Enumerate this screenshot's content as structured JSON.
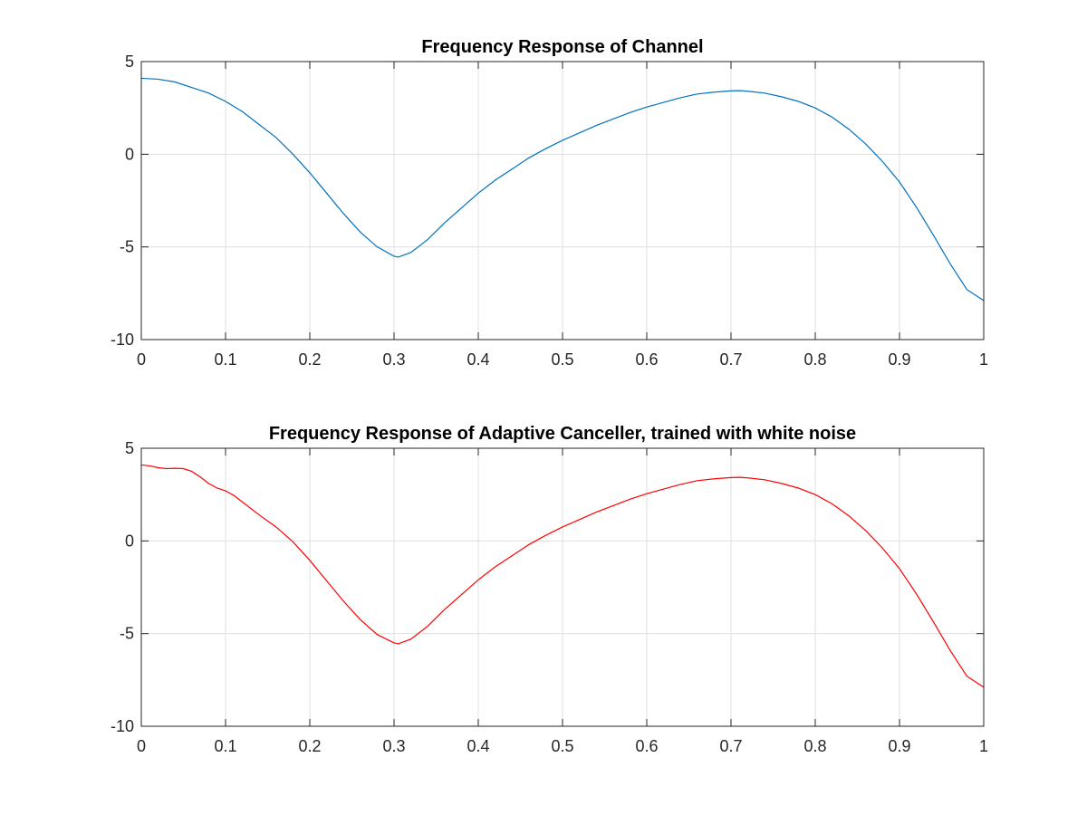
{
  "chart_data": [
    {
      "type": "line",
      "title": "Frequency Response of Channel",
      "xlabel": "",
      "ylabel": "",
      "xlim": [
        0,
        1
      ],
      "ylim": [
        -10,
        5
      ],
      "grid": true,
      "xticks": [
        0,
        0.1,
        0.2,
        0.3,
        0.4,
        0.5,
        0.6,
        0.7,
        0.8,
        0.9,
        1
      ],
      "xtick_labels": [
        "0",
        "0.1",
        "0.2",
        "0.3",
        "0.4",
        "0.5",
        "0.6",
        "0.7",
        "0.8",
        "0.9",
        "1"
      ],
      "yticks": [
        5,
        0,
        -5,
        -10
      ],
      "ytick_labels": [
        "5",
        "0",
        "-5",
        "-10"
      ],
      "series": [
        {
          "color": "#0072bd",
          "x": [
            0,
            0.02,
            0.04,
            0.06,
            0.08,
            0.1,
            0.12,
            0.14,
            0.16,
            0.18,
            0.2,
            0.22,
            0.24,
            0.26,
            0.28,
            0.3,
            0.305,
            0.32,
            0.34,
            0.36,
            0.38,
            0.4,
            0.42,
            0.44,
            0.46,
            0.48,
            0.5,
            0.52,
            0.54,
            0.56,
            0.58,
            0.6,
            0.62,
            0.64,
            0.66,
            0.68,
            0.7,
            0.71,
            0.72,
            0.74,
            0.76,
            0.78,
            0.8,
            0.82,
            0.84,
            0.86,
            0.88,
            0.9,
            0.92,
            0.94,
            0.96,
            0.98,
            1.0
          ],
          "y": [
            4.1,
            4.05,
            3.9,
            3.6,
            3.3,
            2.85,
            2.3,
            1.6,
            0.9,
            0.0,
            -1.0,
            -2.1,
            -3.2,
            -4.2,
            -5.0,
            -5.5,
            -5.55,
            -5.3,
            -4.6,
            -3.7,
            -2.9,
            -2.1,
            -1.4,
            -0.8,
            -0.2,
            0.3,
            0.75,
            1.15,
            1.55,
            1.9,
            2.25,
            2.55,
            2.8,
            3.05,
            3.25,
            3.35,
            3.42,
            3.43,
            3.4,
            3.3,
            3.1,
            2.85,
            2.5,
            2.0,
            1.35,
            0.55,
            -0.4,
            -1.5,
            -2.85,
            -4.35,
            -5.9,
            -7.3,
            -7.9
          ]
        }
      ]
    },
    {
      "type": "line",
      "title": "Frequency Response of Adaptive Canceller, trained with white noise",
      "xlabel": "",
      "ylabel": "",
      "xlim": [
        0,
        1
      ],
      "ylim": [
        -10,
        5
      ],
      "grid": true,
      "xticks": [
        0,
        0.1,
        0.2,
        0.3,
        0.4,
        0.5,
        0.6,
        0.7,
        0.8,
        0.9,
        1
      ],
      "xtick_labels": [
        "0",
        "0.1",
        "0.2",
        "0.3",
        "0.4",
        "0.5",
        "0.6",
        "0.7",
        "0.8",
        "0.9",
        "1"
      ],
      "yticks": [
        5,
        0,
        -5,
        -10
      ],
      "ytick_labels": [
        "5",
        "0",
        "-5",
        "-10"
      ],
      "series": [
        {
          "color": "#ff0000",
          "x": [
            0,
            0.01,
            0.02,
            0.03,
            0.04,
            0.05,
            0.06,
            0.07,
            0.08,
            0.09,
            0.1,
            0.11,
            0.12,
            0.14,
            0.16,
            0.18,
            0.2,
            0.22,
            0.24,
            0.26,
            0.28,
            0.3,
            0.305,
            0.32,
            0.34,
            0.36,
            0.38,
            0.4,
            0.42,
            0.44,
            0.46,
            0.48,
            0.5,
            0.52,
            0.54,
            0.56,
            0.58,
            0.6,
            0.62,
            0.64,
            0.66,
            0.68,
            0.7,
            0.71,
            0.72,
            0.74,
            0.76,
            0.78,
            0.8,
            0.82,
            0.84,
            0.86,
            0.88,
            0.9,
            0.92,
            0.94,
            0.96,
            0.98,
            1.0
          ],
          "y": [
            4.1,
            4.05,
            3.95,
            3.9,
            3.92,
            3.9,
            3.75,
            3.45,
            3.1,
            2.85,
            2.7,
            2.45,
            2.1,
            1.4,
            0.75,
            -0.05,
            -1.05,
            -2.15,
            -3.25,
            -4.25,
            -5.05,
            -5.5,
            -5.55,
            -5.3,
            -4.6,
            -3.7,
            -2.9,
            -2.1,
            -1.4,
            -0.8,
            -0.2,
            0.3,
            0.75,
            1.15,
            1.55,
            1.9,
            2.25,
            2.55,
            2.8,
            3.05,
            3.25,
            3.35,
            3.42,
            3.43,
            3.4,
            3.3,
            3.1,
            2.85,
            2.5,
            2.0,
            1.35,
            0.55,
            -0.4,
            -1.5,
            -2.85,
            -4.35,
            -5.9,
            -7.3,
            -7.9
          ]
        }
      ]
    }
  ]
}
